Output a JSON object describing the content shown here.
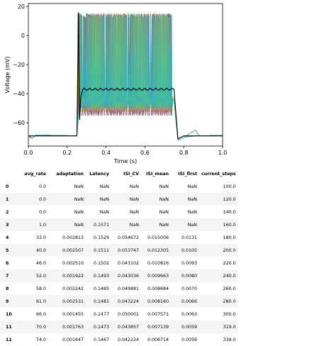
{
  "chart_data": {
    "type": "line",
    "xlabel": "Time (s)",
    "ylabel": "Voltage (mV)",
    "xlim": [
      0.0,
      1.0
    ],
    "ylim": [
      -76,
      22
    ],
    "xticks": [
      "0.0",
      "0.2",
      "0.4",
      "0.6",
      "0.8",
      "1.0"
    ],
    "xtick_values": [
      0.0,
      0.2,
      0.4,
      0.6,
      0.8,
      1.0
    ],
    "yticks": [
      "20",
      "0",
      "−20",
      "−40",
      "−60"
    ],
    "ytick_values": [
      20,
      0,
      -20,
      -40,
      -60
    ],
    "stimulus_start": 0.25,
    "stimulus_end": 0.75,
    "resting_potential": -69,
    "spike_peak": 15,
    "spike_trough": -55,
    "mean_trace_level": -37,
    "series_colors": [
      "#1f77b4",
      "#ff7f0e",
      "#2ca02c",
      "#d62728",
      "#9467bd",
      "#8c564b",
      "#e377c2",
      "#7f7f7f",
      "#bcbd22",
      "#17becf"
    ],
    "mean_trace_color": "#000000"
  },
  "table": {
    "columns": [
      "avg_rate",
      "adaptation",
      "Latency",
      "ISI_CV",
      "ISI_mean",
      "ISI_first",
      "current_steps"
    ],
    "rows": [
      {
        "index": "0",
        "cells": [
          "0.0",
          "NaN",
          "NaN",
          "NaN",
          "NaN",
          "NaN",
          "100.0"
        ]
      },
      {
        "index": "1",
        "cells": [
          "0.0",
          "NaN",
          "NaN",
          "NaN",
          "NaN",
          "NaN",
          "120.0"
        ]
      },
      {
        "index": "2",
        "cells": [
          "0.0",
          "NaN",
          "NaN",
          "NaN",
          "NaN",
          "NaN",
          "140.0"
        ]
      },
      {
        "index": "3",
        "cells": [
          "1.0",
          "NaN",
          "0.1571",
          "NaN",
          "NaN",
          "NaN",
          "160.0"
        ]
      },
      {
        "index": "4",
        "cells": [
          "33.0",
          "0.002813",
          "0.1529",
          "0.054672",
          "0.015006",
          "0.0131",
          "180.0"
        ]
      },
      {
        "index": "5",
        "cells": [
          "40.0",
          "0.002507",
          "0.1511",
          "0.053747",
          "0.012305",
          "0.0105",
          "200.0"
        ]
      },
      {
        "index": "6",
        "cells": [
          "46.0",
          "0.002510",
          "0.1502",
          "0.043102",
          "0.010816",
          "0.0093",
          "220.0"
        ]
      },
      {
        "index": "7",
        "cells": [
          "52.0",
          "0.001922",
          "0.1493",
          "0.043036",
          "0.009663",
          "0.0080",
          "240.0"
        ]
      },
      {
        "index": "8",
        "cells": [
          "58.0",
          "0.002242",
          "0.1485",
          "0.049881",
          "0.008684",
          "0.0070",
          "260.0"
        ]
      },
      {
        "index": "9",
        "cells": [
          "61.0",
          "0.002531",
          "0.1481",
          "0.043224",
          "0.008160",
          "0.0066",
          "280.0"
        ]
      },
      {
        "index": "10",
        "cells": [
          "66.0",
          "0.001455",
          "0.1477",
          "0.050001",
          "0.007571",
          "0.0063",
          "300.0"
        ]
      },
      {
        "index": "11",
        "cells": [
          "70.0",
          "0.001763",
          "0.1473",
          "0.043857",
          "0.007139",
          "0.0059",
          "319.0"
        ]
      },
      {
        "index": "12",
        "cells": [
          "74.0",
          "0.001647",
          "0.1467",
          "0.042224",
          "0.006714",
          "0.0056",
          "339.0"
        ]
      }
    ]
  }
}
